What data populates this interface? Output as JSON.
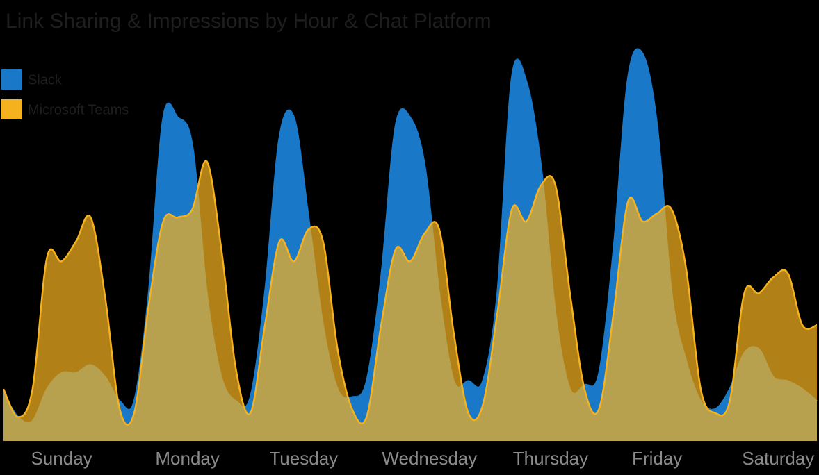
{
  "chart_data": {
    "type": "area",
    "title": "Link Sharing & Impressions by Hour & Chat Platform",
    "x": [
      0,
      3,
      6,
      9,
      12,
      15,
      18,
      21,
      24,
      27,
      30,
      33,
      36,
      39,
      42,
      45,
      48,
      51,
      54,
      57,
      60,
      63,
      66,
      69,
      72,
      75,
      78,
      81,
      84,
      87,
      90,
      93,
      96,
      99,
      102,
      105,
      108,
      111,
      114,
      117,
      120,
      123,
      126,
      129,
      132,
      135,
      138,
      141,
      144,
      147,
      150,
      153,
      156,
      159,
      162,
      165,
      168
    ],
    "xlim": [
      0,
      168
    ],
    "xticks": [
      {
        "value": 12,
        "label": "Sunday"
      },
      {
        "value": 38,
        "label": "Monday"
      },
      {
        "value": 62,
        "label": "Tuesday"
      },
      {
        "value": 88,
        "label": "Wednesday"
      },
      {
        "value": 113,
        "label": "Thursday"
      },
      {
        "value": 135,
        "label": "Friday"
      },
      {
        "value": 160,
        "label": "Saturday"
      }
    ],
    "ylim": [
      0,
      100
    ],
    "legend": "top-left",
    "series": [
      {
        "name": "Slack",
        "color": "#1a78c8",
        "values": [
          12,
          6,
          5,
          13,
          17,
          17,
          19,
          16,
          10,
          10,
          37,
          81,
          81,
          74,
          37,
          16,
          10,
          11,
          37,
          76,
          81,
          56,
          29,
          13,
          11,
          15,
          41,
          79,
          81,
          69,
          37,
          15,
          15,
          15,
          37,
          91,
          90,
          69,
          32,
          13,
          14,
          17,
          48,
          91,
          97,
          79,
          37,
          20,
          10,
          8,
          13,
          22,
          23,
          16,
          15,
          13,
          10
        ]
      },
      {
        "name": "Microsoft Teams",
        "color": "#f5b21e",
        "values": [
          13,
          6,
          13,
          46,
          45,
          50,
          56,
          36,
          8,
          7,
          34,
          55,
          56,
          58,
          70,
          48,
          18,
          7,
          29,
          50,
          45,
          53,
          50,
          23,
          8,
          6,
          29,
          48,
          45,
          52,
          53,
          27,
          7,
          9,
          32,
          58,
          55,
          64,
          64,
          37,
          13,
          8,
          32,
          60,
          55,
          57,
          58,
          43,
          13,
          7,
          10,
          37,
          37,
          41,
          42,
          29,
          29
        ]
      }
    ]
  }
}
